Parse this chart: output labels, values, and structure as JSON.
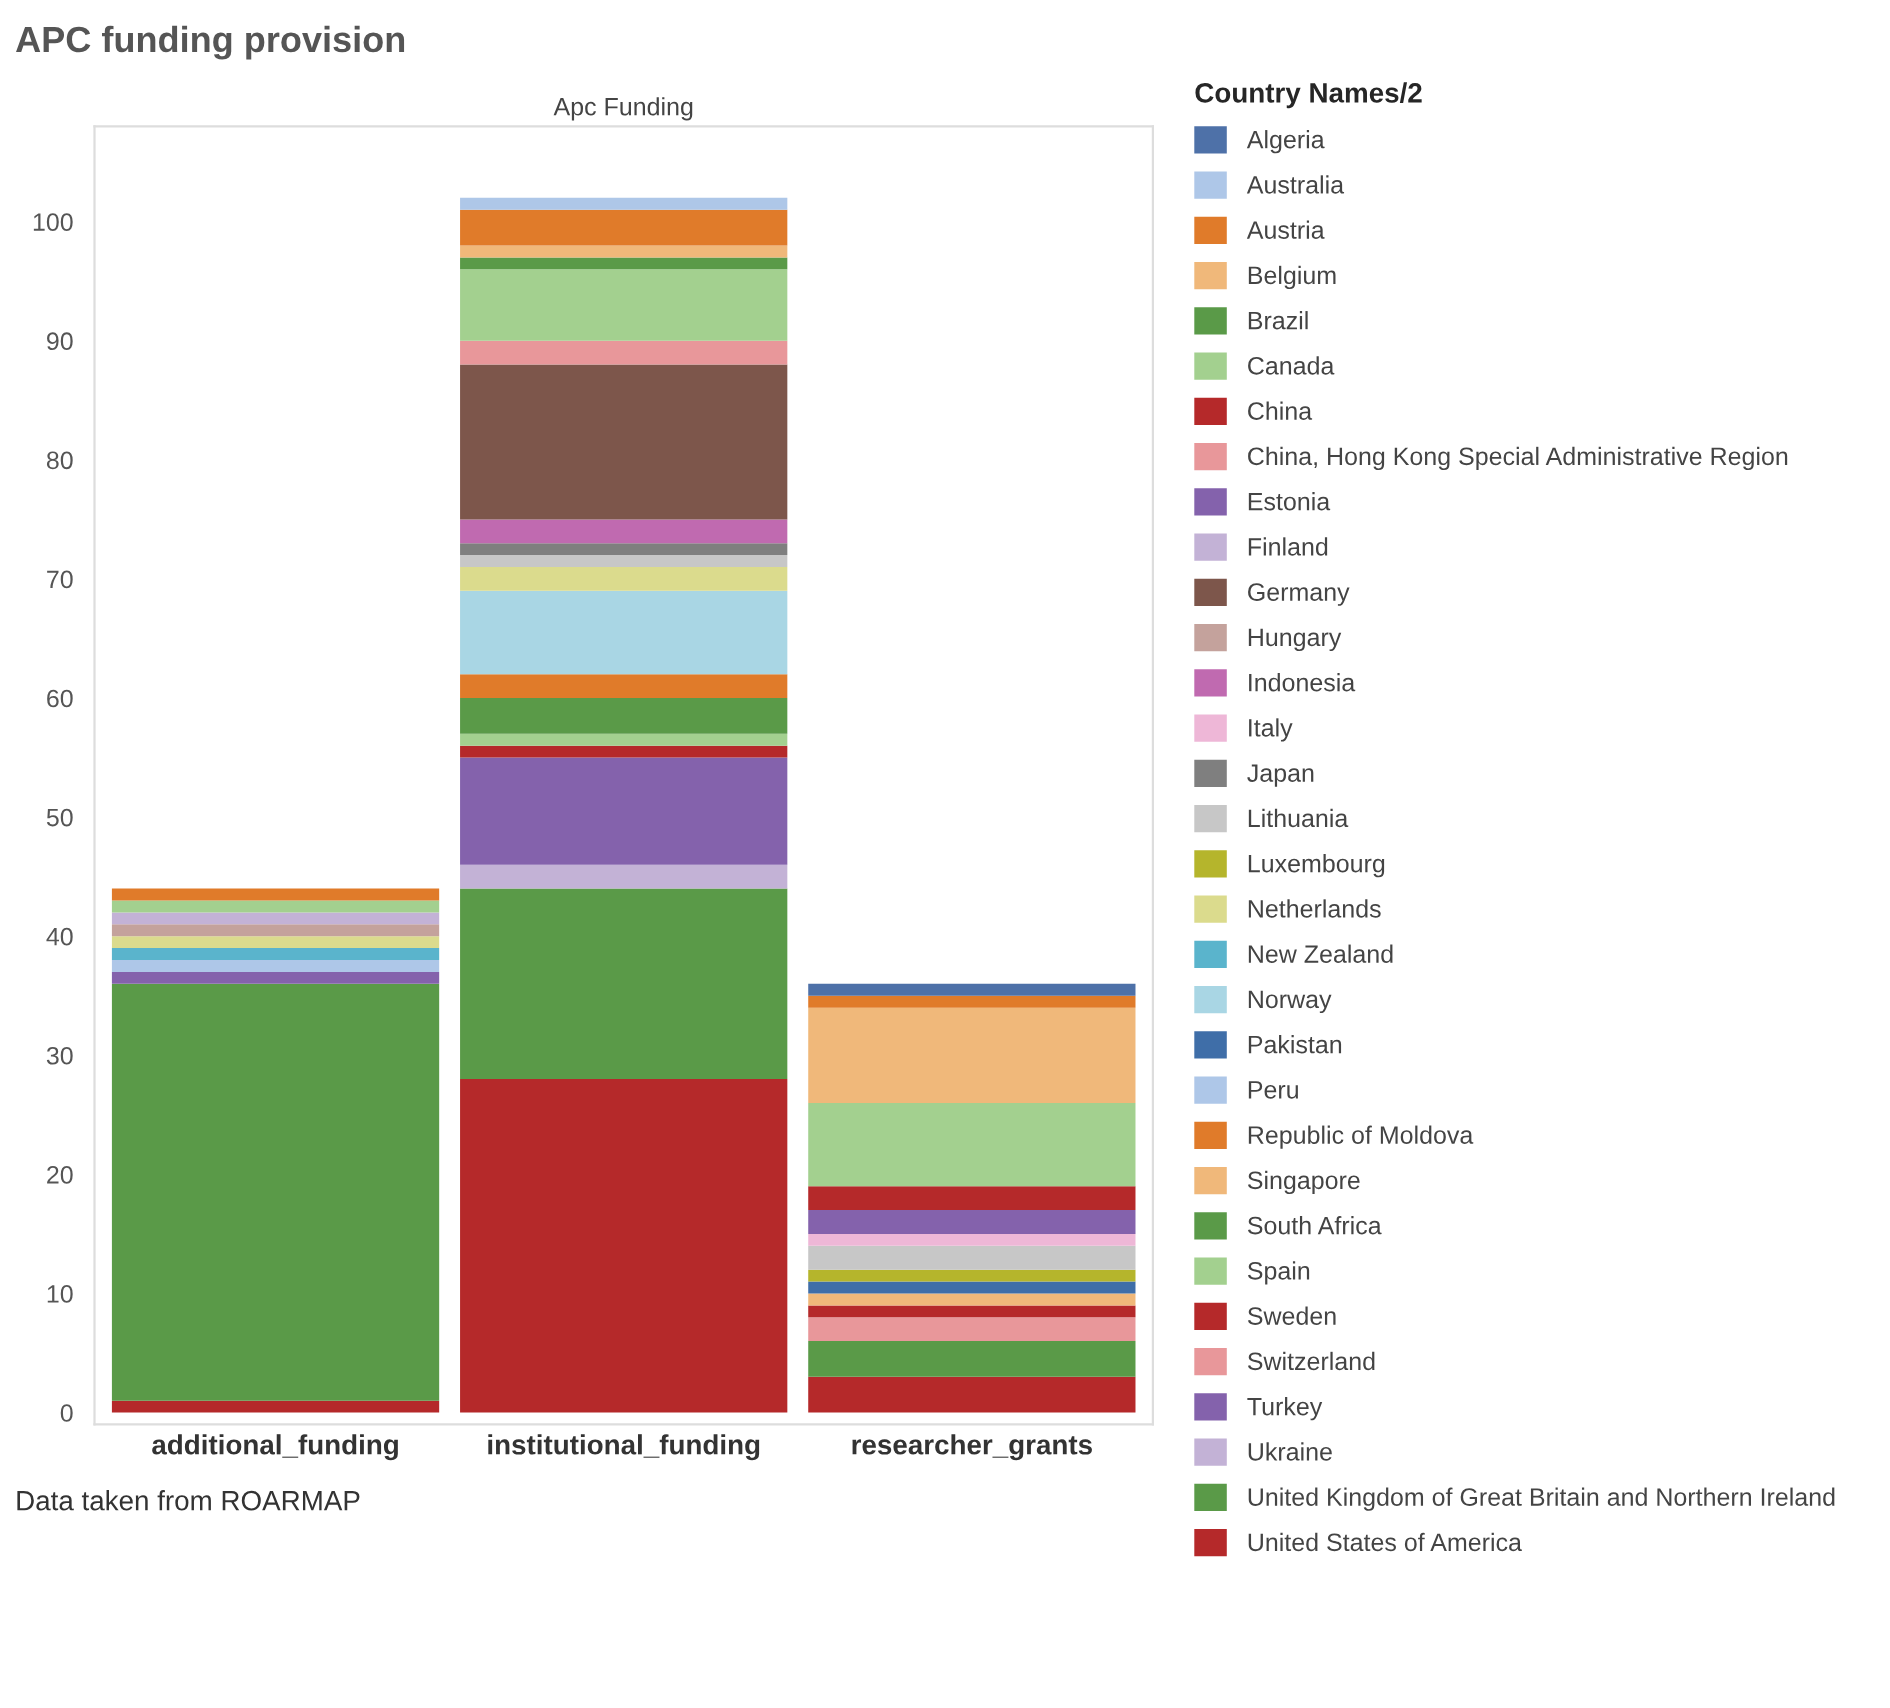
{
  "chart_data": {
    "type": "bar",
    "stacked": true,
    "title": "APC funding provision",
    "subtitle": "Apc Funding",
    "legend_title": "Country Names/2",
    "legend": "right",
    "grid": false,
    "categories": [
      "additional_funding",
      "institutional_funding",
      "researcher_grants"
    ],
    "ylim": [
      -1,
      108
    ],
    "yticks": [
      0,
      10,
      20,
      30,
      40,
      50,
      60,
      70,
      80,
      90,
      100
    ],
    "annotations": [
      "Data taken from ROARMAP"
    ],
    "series": [
      {
        "name": "United States of America",
        "color": "#b5292a",
        "values": [
          1,
          28,
          3
        ]
      },
      {
        "name": "United Kingdom of Great Britain and Northern Ireland",
        "color": "#5a9a48",
        "values": [
          35,
          16,
          3
        ]
      },
      {
        "name": "Ukraine",
        "color": "#c3b2d6",
        "values": [
          null,
          2,
          null
        ]
      },
      {
        "name": "Turkey",
        "color": "#8462ac",
        "values": [
          1,
          9,
          null
        ]
      },
      {
        "name": "Switzerland",
        "color": "#e8979a",
        "values": [
          null,
          null,
          2
        ]
      },
      {
        "name": "Sweden",
        "color": "#b5292a",
        "values": [
          null,
          1,
          1
        ]
      },
      {
        "name": "Spain",
        "color": "#a3d08f",
        "values": [
          null,
          1,
          null
        ]
      },
      {
        "name": "South Africa",
        "color": "#5a9a48",
        "values": [
          null,
          3,
          null
        ]
      },
      {
        "name": "Singapore",
        "color": "#f0b87a",
        "values": [
          null,
          null,
          1
        ]
      },
      {
        "name": "Republic of Moldova",
        "color": "#e07b2a",
        "values": [
          null,
          2,
          null
        ]
      },
      {
        "name": "Peru",
        "color": "#aec7e8",
        "values": [
          1,
          null,
          null
        ]
      },
      {
        "name": "Pakistan",
        "color": "#3f6ea8",
        "values": [
          null,
          null,
          1
        ]
      },
      {
        "name": "Norway",
        "color": "#a9d6e4",
        "values": [
          null,
          7,
          null
        ]
      },
      {
        "name": "New Zealand",
        "color": "#5ab4cc",
        "values": [
          1,
          null,
          null
        ]
      },
      {
        "name": "Netherlands",
        "color": "#dbdb8d",
        "values": [
          1,
          2,
          null
        ]
      },
      {
        "name": "Luxembourg",
        "color": "#b5b52c",
        "values": [
          null,
          null,
          1
        ]
      },
      {
        "name": "Lithuania",
        "color": "#c7c7c7",
        "values": [
          null,
          1,
          2
        ]
      },
      {
        "name": "Japan",
        "color": "#7f7f7f",
        "values": [
          null,
          1,
          null
        ]
      },
      {
        "name": "Italy",
        "color": "#eeb7d7",
        "values": [
          null,
          null,
          1
        ]
      },
      {
        "name": "Indonesia",
        "color": "#c06ab0",
        "values": [
          null,
          2,
          null
        ]
      },
      {
        "name": "Hungary",
        "color": "#c4a29c",
        "values": [
          1,
          null,
          null
        ]
      },
      {
        "name": "Germany",
        "color": "#7d564b",
        "values": [
          null,
          13,
          null
        ]
      },
      {
        "name": "Finland",
        "color": "#c3b2d6",
        "values": [
          1,
          null,
          null
        ]
      },
      {
        "name": "Estonia",
        "color": "#8462ac",
        "values": [
          null,
          null,
          2
        ]
      },
      {
        "name": "China, Hong Kong Special Administrative Region",
        "color": "#e8979a",
        "values": [
          null,
          2,
          null
        ]
      },
      {
        "name": "China",
        "color": "#b5292a",
        "values": [
          null,
          null,
          2
        ]
      },
      {
        "name": "Canada",
        "color": "#a3d08f",
        "values": [
          1,
          6,
          7
        ]
      },
      {
        "name": "Brazil",
        "color": "#5a9a48",
        "values": [
          null,
          1,
          null
        ]
      },
      {
        "name": "Belgium",
        "color": "#f0b87a",
        "values": [
          null,
          1,
          8
        ]
      },
      {
        "name": "Austria",
        "color": "#e07b2a",
        "values": [
          1,
          3,
          1
        ]
      },
      {
        "name": "Australia",
        "color": "#aec7e8",
        "values": [
          null,
          1,
          null
        ]
      },
      {
        "name": "Algeria",
        "color": "#4e71a8",
        "values": [
          null,
          null,
          1
        ]
      }
    ]
  }
}
